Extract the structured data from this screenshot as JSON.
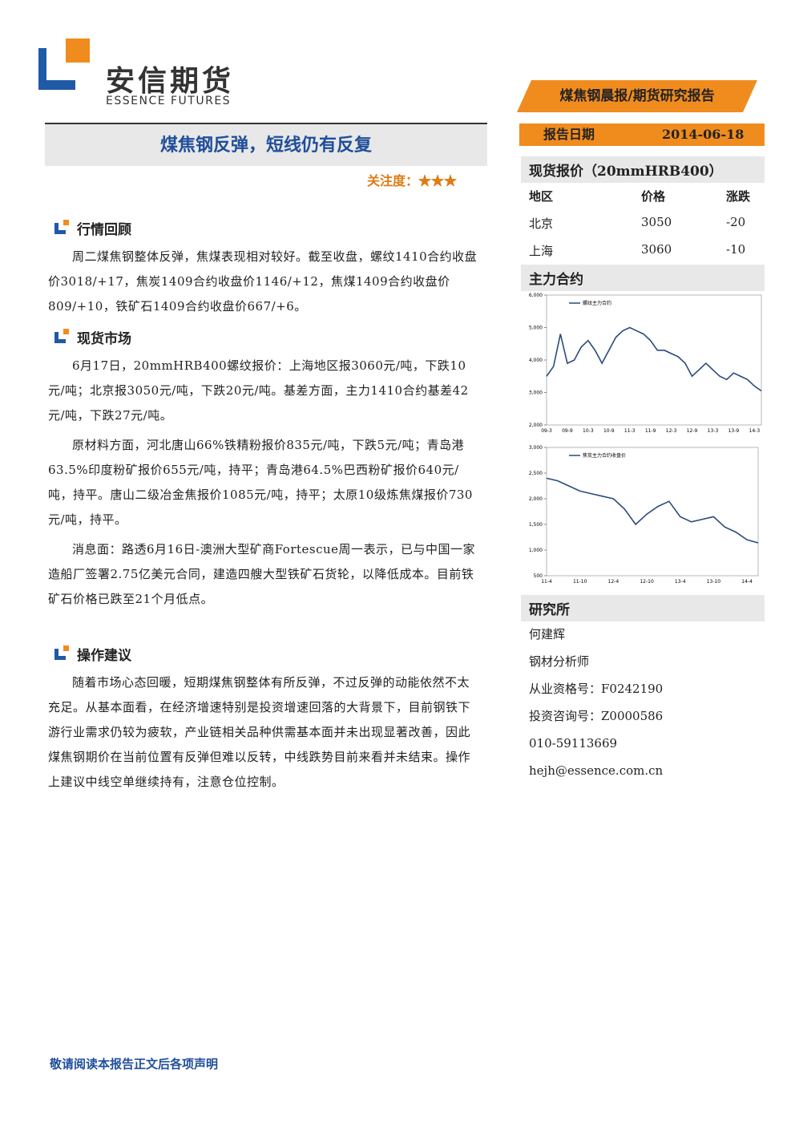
{
  "header": {
    "logo_cn": "安信期货",
    "logo_en": "ESSENCE FUTURES",
    "banner": "煤焦钢晨报/期货研究报告"
  },
  "title": "煤焦钢反弹，短线仍有反复",
  "attention": {
    "label": "关注度：",
    "stars": "★★★"
  },
  "sections": [
    {
      "heading": "行情回顾",
      "paragraphs": [
        "周二煤焦钢整体反弹，焦煤表现相对较好。截至收盘，螺纹1410合约收盘价3018/+17，焦炭1409合约收盘价1146/+12，焦煤1409合约收盘价809/+10，铁矿石1409合约收盘价667/+6。"
      ]
    },
    {
      "heading": "现货市场",
      "paragraphs": [
        "6月17日，20mmHRB400螺纹报价：上海地区报3060元/吨，下跌10元/吨；北京报3050元/吨，下跌20元/吨。基差方面，主力1410合约基差42元/吨，下跌27元/吨。",
        "原材料方面，河北唐山66%铁精粉报价835元/吨，下跌5元/吨；青岛港63.5%印度粉矿报价655元/吨，持平；青岛港64.5%巴西粉矿报价640元/吨，持平。唐山二级冶金焦报价1085元/吨，持平；太原10级炼焦煤报价730元/吨，持平。",
        "消息面：路透6月16日-澳洲大型矿商Fortescue周一表示，已与中国一家造船厂签署2.75亿美元合同，建造四艘大型铁矿石货轮，以降低成本。目前铁矿石价格已跌至21个月低点。"
      ]
    },
    {
      "heading": "操作建议",
      "paragraphs": [
        "随着市场心态回暖，短期煤焦钢整体有所反弹，不过反弹的动能依然不太充足。从基本面看，在经济增速特别是投资增速回落的大背景下，目前钢铁下游行业需求仍较为疲软，产业链相关品种供需基本面并未出现显著改善，因此煤焦钢期价在当前位置有反弹但难以反转，中线跌势目前来看并未结束。操作上建议中线空单继续持有，注意仓位控制。"
      ]
    }
  ],
  "sidebar": {
    "date_label": "报告日期",
    "date": "2014-06-18",
    "spot_title": "现货报价（20mmHRB400）",
    "table": {
      "header": [
        "地区",
        "价格",
        "涨跌"
      ],
      "rows": [
        [
          "北京",
          3050,
          -20
        ],
        [
          "上海",
          3060,
          -10
        ]
      ]
    },
    "contract_title": "主力合约",
    "research_title": "研究所",
    "research": [
      "何建辉",
      "钢材分析师",
      "从业资格号：F0242190",
      "投资咨询号：Z0000586",
      "010-59113669",
      "hejh@essence.com.cn"
    ]
  },
  "footer": "敬请阅读本报告正文后各项声明",
  "chart_data": [
    {
      "type": "line",
      "series": [
        {
          "name": "螺纹主力合约",
          "color": "#2c4a7c",
          "values": [
            3500,
            3800,
            4800,
            3900,
            4000,
            4400,
            4600,
            4300,
            3900,
            4300,
            4700,
            4900,
            5000,
            4900,
            4800,
            4600,
            4300,
            4300,
            4200,
            4100,
            3900,
            3500,
            3700,
            3900,
            3700,
            3500,
            3400,
            3600,
            3500,
            3400,
            3200,
            3050
          ]
        }
      ],
      "categories": [
        "09-3",
        null,
        null,
        "09-9",
        null,
        null,
        "10-3",
        null,
        null,
        "10-9",
        null,
        null,
        "11-3",
        null,
        null,
        "11-9",
        null,
        null,
        "12-3",
        null,
        null,
        "12-9",
        null,
        null,
        "13-3",
        null,
        null,
        "13-9",
        null,
        null,
        "14-3",
        null
      ],
      "ylim": [
        2000,
        6000
      ],
      "yticks": [
        {
          "value": 2000,
          "label": "2,000"
        },
        {
          "value": 3000,
          "label": "3,000"
        },
        {
          "value": 4000,
          "label": "4,000"
        },
        {
          "value": 5000,
          "label": "5,000"
        },
        {
          "value": 6000,
          "label": "6,000"
        }
      ]
    },
    {
      "type": "line",
      "series": [
        {
          "name": "焦炭主力合约收盘价",
          "color": "#2c4a7c",
          "values": [
            2400,
            2350,
            2250,
            2150,
            2100,
            2050,
            2000,
            1800,
            1500,
            1700,
            1850,
            1950,
            1650,
            1550,
            1600,
            1650,
            1450,
            1350,
            1200,
            1140
          ]
        }
      ],
      "categories": [
        "11-4",
        null,
        null,
        "11-10",
        null,
        null,
        "12-4",
        null,
        null,
        "12-10",
        null,
        null,
        "13-4",
        null,
        null,
        "13-10",
        null,
        null,
        "14-4",
        null
      ],
      "ylim": [
        500,
        3000
      ],
      "yticks": [
        500,
        {
          "value": 1000,
          "label": "1,000"
        },
        {
          "value": 1500,
          "label": "1,500"
        },
        {
          "value": 2000,
          "label": "2,000"
        },
        {
          "value": 2500,
          "label": "2,500"
        },
        {
          "value": 3000,
          "label": "3,000"
        }
      ]
    }
  ]
}
